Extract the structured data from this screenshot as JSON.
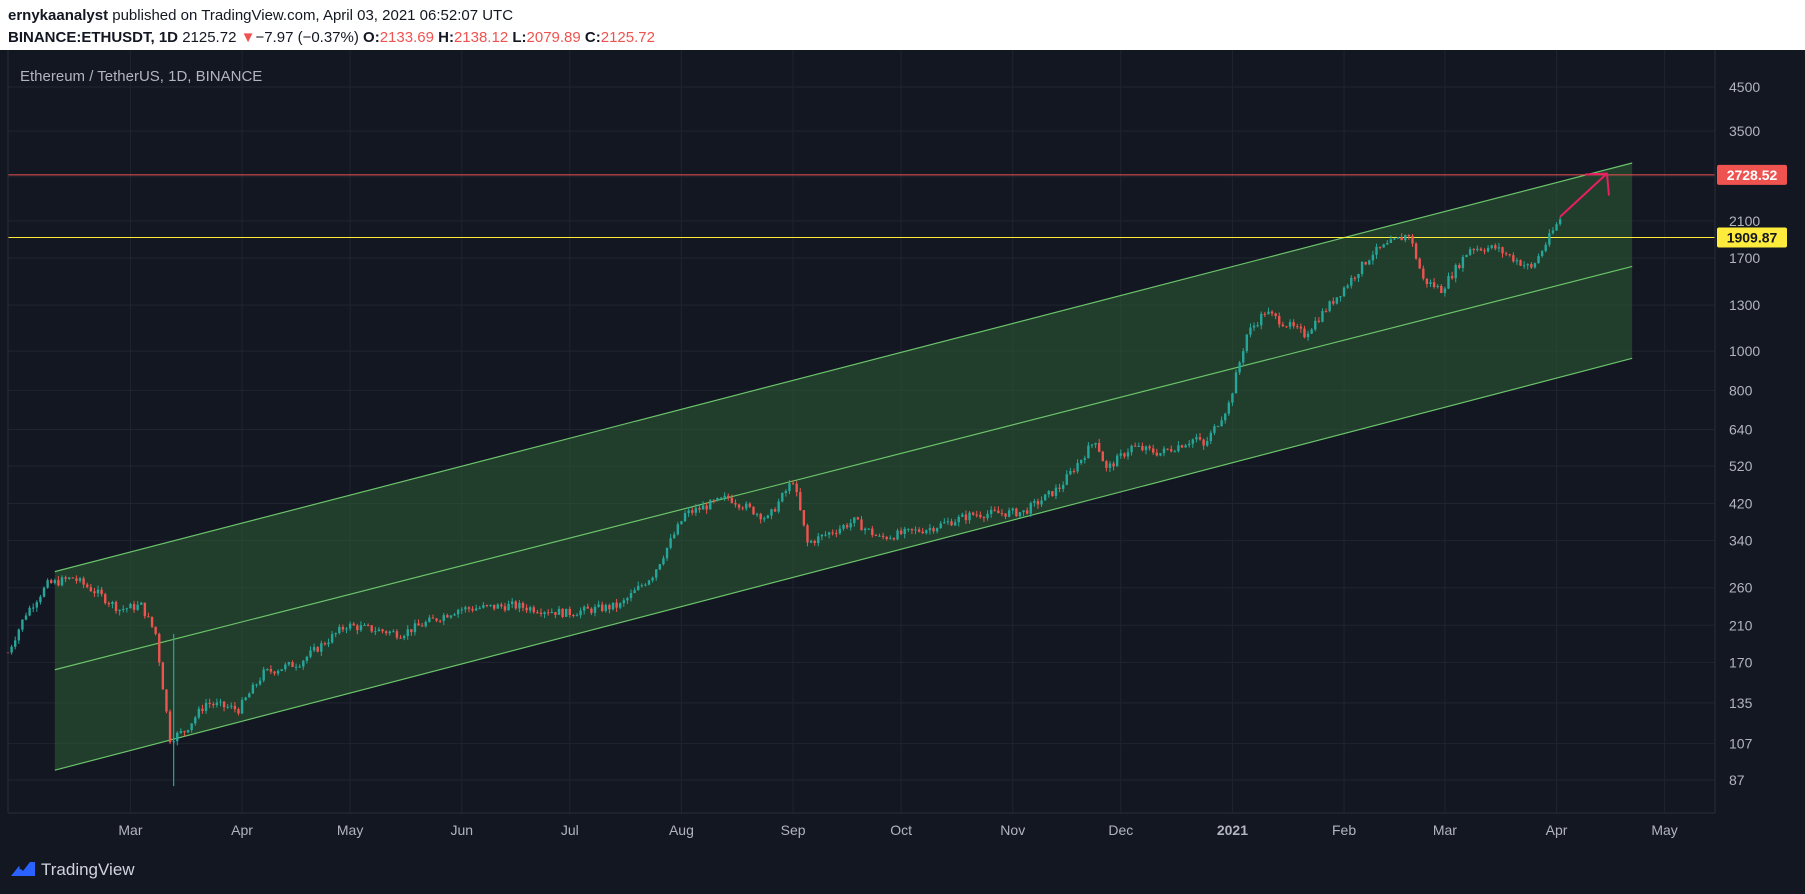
{
  "header": {
    "publisher": "ernykaanalyst",
    "published_text": " published on TradingView.com, April 03, 2021 06:52:07 UTC",
    "symbol": "BINANCE:ETHUSDT, 1D",
    "last": "2125.72",
    "change_arrow": "▼",
    "change": "−7.97 (−0.37%)",
    "open_label": "O:",
    "open": "2133.69",
    "high_label": "H:",
    "high": "2138.12",
    "low_label": "L:",
    "low": "2079.89",
    "close_label": "C:",
    "close": "2125.72"
  },
  "chart_title": "Ethereum / TetherUS, 1D, BINANCE",
  "footer": {
    "brand": "TradingView"
  },
  "colors": {
    "background": "#131722",
    "grid": "#1f2430",
    "up": "#26a69a",
    "down": "#ef5350",
    "channel": "#6bc36b",
    "channel_fill": "#2e5d33",
    "resistance": "#ef5350",
    "support": "#ffeb3b",
    "arrow": "#e91e63"
  },
  "chart_data": {
    "type": "candlestick",
    "y_scale": "log",
    "y_ticks": [
      "4500",
      "3500",
      "2700",
      "2100",
      "1700",
      "1300",
      "1000",
      "800",
      "640",
      "520",
      "420",
      "340",
      "260",
      "210",
      "170",
      "135",
      "107",
      "87"
    ],
    "x_ticks": [
      "Mar",
      "Apr",
      "May",
      "Jun",
      "Jul",
      "Aug",
      "Sep",
      "Oct",
      "Nov",
      "Dec",
      "2021",
      "Feb",
      "Mar",
      "Apr",
      "May"
    ],
    "x_range": [
      "2020-01-27",
      "2021-05-15"
    ],
    "price_lines": [
      {
        "value": 2728.52,
        "label": "2728.52",
        "color": "#ef5350"
      },
      {
        "value": 1909.87,
        "label": "1909.87",
        "color": "#ffeb3b"
      }
    ],
    "channel": {
      "start": "2020-02-09",
      "end": "2021-04-22",
      "upper": [
        285,
        2920
      ],
      "mid": [
        163,
        1620
      ],
      "lower": [
        92,
        960
      ]
    },
    "arrow": {
      "from": [
        "2021-04-02",
        2150
      ],
      "to": [
        "2021-04-15",
        2750
      ]
    },
    "closes": [
      [
        "2020-01-27",
        180
      ],
      [
        "2020-02-01",
        225
      ],
      [
        "2020-02-07",
        265
      ],
      [
        "2020-02-14",
        275
      ],
      [
        "2020-02-20",
        255
      ],
      [
        "2020-02-27",
        230
      ],
      [
        "2020-03-04",
        235
      ],
      [
        "2020-03-08",
        200
      ],
      [
        "2020-03-12",
        110
      ],
      [
        "2020-03-16",
        115
      ],
      [
        "2020-03-22",
        135
      ],
      [
        "2020-03-31",
        130
      ],
      [
        "2020-04-07",
        160
      ],
      [
        "2020-04-17",
        170
      ],
      [
        "2020-04-30",
        210
      ],
      [
        "2020-05-15",
        200
      ],
      [
        "2020-05-31",
        230
      ],
      [
        "2020-06-15",
        235
      ],
      [
        "2020-06-30",
        225
      ],
      [
        "2020-07-15",
        235
      ],
      [
        "2020-07-24",
        280
      ],
      [
        "2020-08-02",
        395
      ],
      [
        "2020-08-14",
        435
      ],
      [
        "2020-08-25",
        385
      ],
      [
        "2020-09-01",
        480
      ],
      [
        "2020-09-05",
        335
      ],
      [
        "2020-09-18",
        380
      ],
      [
        "2020-09-25",
        345
      ],
      [
        "2020-10-09",
        365
      ],
      [
        "2020-10-21",
        395
      ],
      [
        "2020-11-04",
        400
      ],
      [
        "2020-11-14",
        460
      ],
      [
        "2020-11-24",
        605
      ],
      [
        "2020-11-27",
        510
      ],
      [
        "2020-12-04",
        580
      ],
      [
        "2020-12-12",
        560
      ],
      [
        "2020-12-22",
        610
      ],
      [
        "2020-12-24",
        580
      ],
      [
        "2020-12-31",
        740
      ],
      [
        "2021-01-05",
        1100
      ],
      [
        "2021-01-10",
        1250
      ],
      [
        "2021-01-21",
        1100
      ],
      [
        "2021-01-31",
        1400
      ],
      [
        "2021-02-09",
        1750
      ],
      [
        "2021-02-19",
        1950
      ],
      [
        "2021-02-23",
        1500
      ],
      [
        "2021-02-28",
        1420
      ],
      [
        "2021-03-08",
        1800
      ],
      [
        "2021-03-15",
        1800
      ],
      [
        "2021-03-25",
        1600
      ],
      [
        "2021-04-02",
        2125
      ]
    ]
  }
}
